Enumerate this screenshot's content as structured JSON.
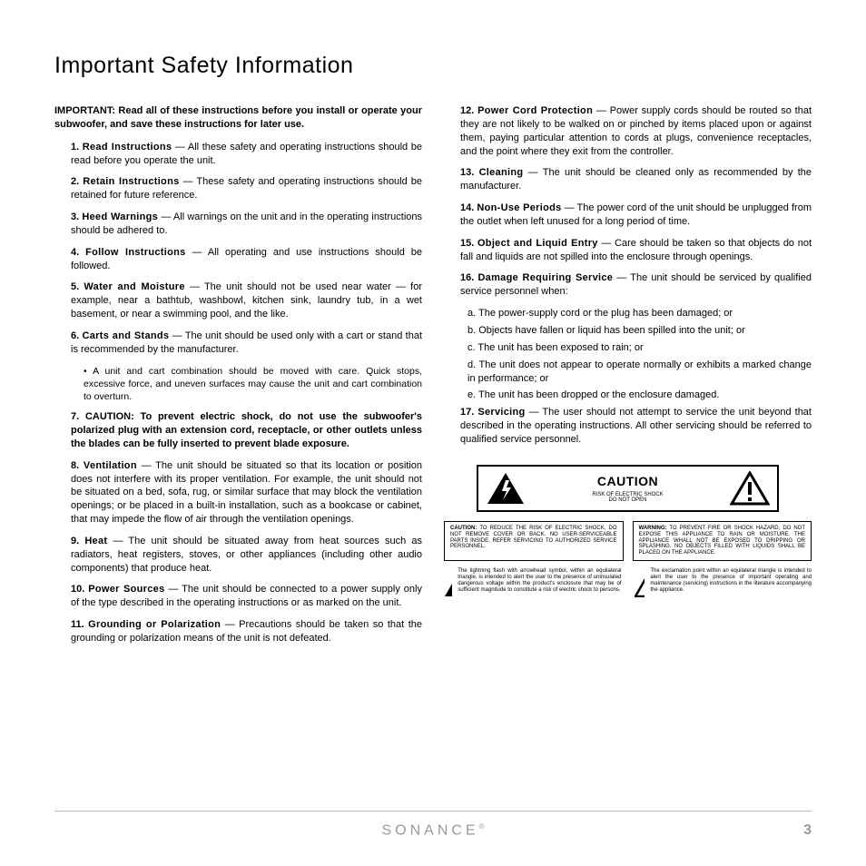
{
  "title": "Important Safety Information",
  "intro_prefix": "IMPORTANT:",
  "intro": "Read all of these instructions before you install or operate your subwoofer, and save these instructions for later use.",
  "left": [
    {
      "n": "1.",
      "h": "Read Instructions",
      "t": " — All these safety and operating instructions should be read before you operate the unit."
    },
    {
      "n": "2.",
      "h": "Retain Instructions",
      "t": " — These safety and operating instructions should be retained for future reference."
    },
    {
      "n": "3.",
      "h": "Heed Warnings",
      "t": " — All warnings on the unit and in the operating instructions should be adhered to."
    },
    {
      "n": "4.",
      "h": "Follow Instructions",
      "t": " — All operating and use instructions should be followed."
    },
    {
      "n": "5.",
      "h": "Water and Moisture",
      "t": " — The unit should not be used near water — for example, near a bathtub, washbowl, kitchen sink, laundry tub, in a wet  basement, or near a swimming pool, and the like."
    },
    {
      "n": "6.",
      "h": "Carts and Stands",
      "t": " — The unit should be used only with a cart or stand that is recommended by the manufacturer."
    }
  ],
  "left_sub": "• A unit and cart combination should be moved with care. Quick stops, excessive force, and uneven surfaces may cause the unit and cart combination to overturn.",
  "left_caution": {
    "n": "7.",
    "t": "CAUTION: To prevent electric shock, do not use the subwoofer's polarized plug with an extension cord, receptacle, or other outlets unless the blades can be fully inserted to prevent blade exposure."
  },
  "left2": [
    {
      "n": "8.",
      "h": "Ventilation",
      "t": " — The unit should be situated so that its location or position does not interfere with its proper ventilation.  For example, the unit should not be situated on a bed, sofa, rug, or similar surface that may block the ventilation openings; or be placed in a built-in installation, such as a bookcase or cabinet, that may impede the flow of air through the ventilation openings."
    },
    {
      "n": "9.",
      "h": "Heat",
      "t": " — The unit should be situated away from heat sources such as radiators, heat registers, stoves, or other appliances (including other audio components) that produce heat."
    },
    {
      "n": "10.",
      "h": "Power Sources",
      "t": " — The unit should be connected to a power supply only of the type described in the operating instructions or as marked on the unit."
    },
    {
      "n": "11.",
      "h": "Grounding or Polarization",
      "t": " — Precautions should be taken so that the grounding or polarization means of the unit is not defeated."
    }
  ],
  "right": [
    {
      "n": "12.",
      "h": "Power Cord Protection",
      "t": " — Power supply cords should be routed so that they are not likely to be walked on or pinched by items placed upon or against them, paying particular attention to cords at plugs, convenience receptacles, and the point where they exit from the controller."
    },
    {
      "n": "13.",
      "h": "Cleaning",
      "t": " — The unit should be cleaned only as recommended by the manufacturer."
    },
    {
      "n": "14.",
      "h": "Non-Use Periods",
      "t": " — The power cord of the unit should be unplugged from the outlet when left unused for a long period of time."
    },
    {
      "n": "15.",
      "h": "Object and Liquid Entry",
      "t": " — Care should be taken so that objects do not fall and liquids are not spilled into the enclosure through openings."
    },
    {
      "n": "16.",
      "h": "Damage Requiring Service",
      "t": " — The unit should be serviced by qualified service personnel when:"
    }
  ],
  "right_sub": [
    "a. The power-supply cord or the plug has been damaged; or",
    "b. Objects have fallen or liquid has been spilled into the unit; or",
    "c. The unit has been exposed to rain; or",
    "d. The unit does not appear to operate normally or exhibits a marked change in performance; or",
    "e. The unit has been dropped or the enclosure damaged."
  ],
  "right2": [
    {
      "n": "17.",
      "h": "Servicing",
      "t": " — The user should not attempt to service the unit beyond that described in the operating instructions. All other servicing should be referred to qualified service personnel."
    }
  ],
  "caution_label": "CAUTION",
  "caution_small": "RISK OF ELECTRIC SHOCK\nDO NOT OPEN",
  "warn1_h": "CAUTION:",
  "warn1": "TO REDUCE THE RISK OF ELECTRIC SHOCK, DO NOT REMOVE COVER OR BACK. NO USER-SERVICEABLE PARTS INSIDE. REFER SERVICING TO AUTHORIZED SERVICE PERSONNEL.",
  "warn2_h": "WARNING:",
  "warn2": "TO PREVENT FIRE OR SHOCK HAZARD, DO NOT EXPOSE THIS APPLIANCE TO RAIN OR MOISTURE. THE APPLIANCE WHALL NOT BE EXPOSED TO DRIPPING OR SPLASHING. NO OBJECTS FILLED WITH LIQUIDS SHALL BE PLACED ON THE APPLIANCE.",
  "icon1_text": "The lightning flash with arrowhead symbol, within an equilateral triangle, is intended to alert the user to the presence of uninsulated dangerous voltage within the product's enclosure that may be of sufficient magnitude to constitute a risk of electric shock to persons.",
  "icon2_text": "The exclamation point within an equilateral triangle is intended to alert the user to the presence of important operating and maintenance (servicing) instructions in the literature accompanying the appliance.",
  "brand": "SONANCE",
  "page_number": "3"
}
